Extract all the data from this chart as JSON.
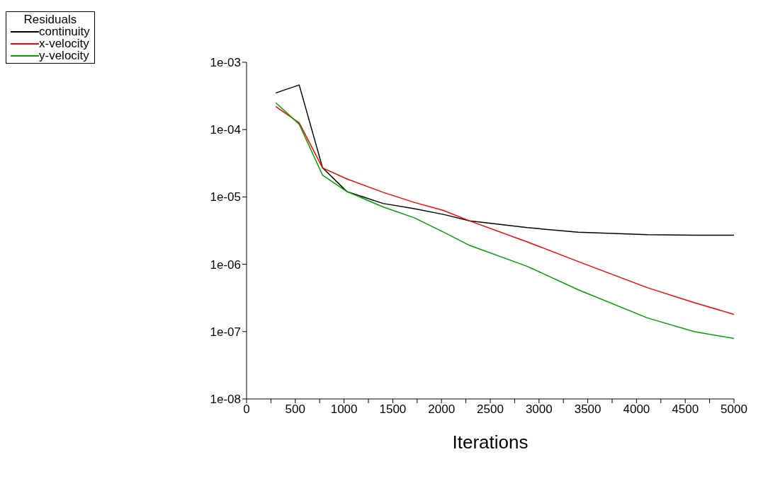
{
  "chart_data": {
    "type": "line",
    "xlabel": "Iterations",
    "legend_title": "Residuals",
    "legend": "top left",
    "log": "y",
    "marker": "none",
    "line_style": "solid",
    "x": [
      300,
      540,
      780,
      1030,
      1400,
      1720,
      2020,
      2290,
      2880,
      3400,
      4110,
      4590,
      5000
    ],
    "series": [
      {
        "name": "continuity",
        "color": "#000000",
        "values": [
          0.00035,
          0.00046,
          2.7e-05,
          1.2e-05,
          8e-06,
          6.7e-06,
          5.5e-06,
          4.4e-06,
          3.5e-06,
          3e-06,
          2.75e-06,
          2.7e-06,
          2.7e-06
        ]
      },
      {
        "name": "x-velocity",
        "color": "#ff0000",
        "values": [
          0.00022,
          0.000126,
          2.7e-05,
          1.85e-05,
          1.17e-05,
          8.3e-06,
          6.3e-06,
          4.4e-06,
          2.15e-06,
          1.1e-06,
          4.5e-07,
          2.7e-07,
          1.8e-07
        ]
      },
      {
        "name": "y-velocity",
        "color": "#00a000",
        "values": [
          0.00025,
          0.00012,
          2.1e-05,
          1.2e-05,
          7.1e-06,
          4.9e-06,
          3e-06,
          1.9e-06,
          9.3e-07,
          4.2e-07,
          1.6e-07,
          1e-07,
          7.9e-08
        ]
      }
    ],
    "xlim": [
      0,
      5000
    ],
    "xticks": [
      0,
      {
        "value": 250,
        "label": null
      },
      500,
      {
        "value": 750,
        "label": null
      },
      1000,
      {
        "value": 1250,
        "label": null
      },
      1500,
      {
        "value": 1750,
        "label": null
      },
      2000,
      {
        "value": 2250,
        "label": null
      },
      2500,
      {
        "value": 2750,
        "label": null
      },
      3000,
      {
        "value": 3250,
        "label": null
      },
      3500,
      {
        "value": 3750,
        "label": null
      },
      4000,
      {
        "value": 4250,
        "label": null
      },
      4500,
      {
        "value": 4750,
        "label": null
      },
      5000
    ],
    "ylim": [
      1e-08,
      0.001
    ],
    "yticks": [
      {
        "value": 1e-08,
        "label": "1e-08"
      },
      {
        "value": 1e-07,
        "label": "1e-07"
      },
      {
        "value": 1e-06,
        "label": "1e-06"
      },
      {
        "value": 1e-05,
        "label": "1e-05"
      },
      {
        "value": 0.0001,
        "label": "1e-04"
      },
      {
        "value": 0.001,
        "label": "1e-03"
      }
    ]
  }
}
